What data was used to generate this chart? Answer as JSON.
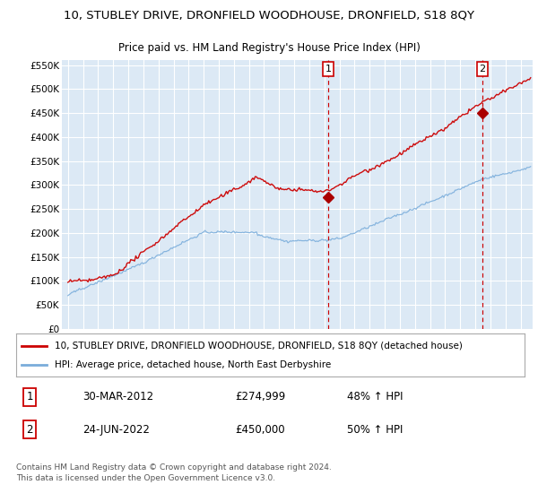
{
  "title": "10, STUBLEY DRIVE, DRONFIELD WOODHOUSE, DRONFIELD, S18 8QY",
  "subtitle": "Price paid vs. HM Land Registry's House Price Index (HPI)",
  "legend_line1": "10, STUBLEY DRIVE, DRONFIELD WOODHOUSE, DRONFIELD, S18 8QY (detached house)",
  "legend_line2": "HPI: Average price, detached house, North East Derbyshire",
  "transaction1_label": "1",
  "transaction1_date": "30-MAR-2012",
  "transaction1_price": "£274,999",
  "transaction1_hpi": "48% ↑ HPI",
  "transaction2_label": "2",
  "transaction2_date": "24-JUN-2022",
  "transaction2_price": "£450,000",
  "transaction2_hpi": "50% ↑ HPI",
  "footer": "Contains HM Land Registry data © Crown copyright and database right 2024.\nThis data is licensed under the Open Government Licence v3.0.",
  "ylim": [
    0,
    560000
  ],
  "yticks": [
    0,
    50000,
    100000,
    150000,
    200000,
    250000,
    300000,
    350000,
    400000,
    450000,
    500000,
    550000
  ],
  "ytick_labels": [
    "£0",
    "£50K",
    "£100K",
    "£150K",
    "£200K",
    "£250K",
    "£300K",
    "£350K",
    "£400K",
    "£450K",
    "£500K",
    "£550K"
  ],
  "xlim_start": 1994.6,
  "xlim_end": 2025.8,
  "vline1_x": 2012.25,
  "vline2_x": 2022.48,
  "marker1_x": 2012.25,
  "marker1_y": 274999,
  "marker2_x": 2022.48,
  "marker2_y": 450000,
  "red_line_color": "#cc0000",
  "blue_line_color": "#7aaddb",
  "plot_bg_color": "#dce9f5",
  "grid_color": "#ffffff",
  "vline_color": "#cc0000",
  "marker_color": "#aa0000",
  "title_fontsize": 9.5,
  "subtitle_fontsize": 8.5,
  "tick_fontsize": 7.5,
  "legend_fontsize": 7.5,
  "table_fontsize": 8.5,
  "footer_fontsize": 6.5
}
